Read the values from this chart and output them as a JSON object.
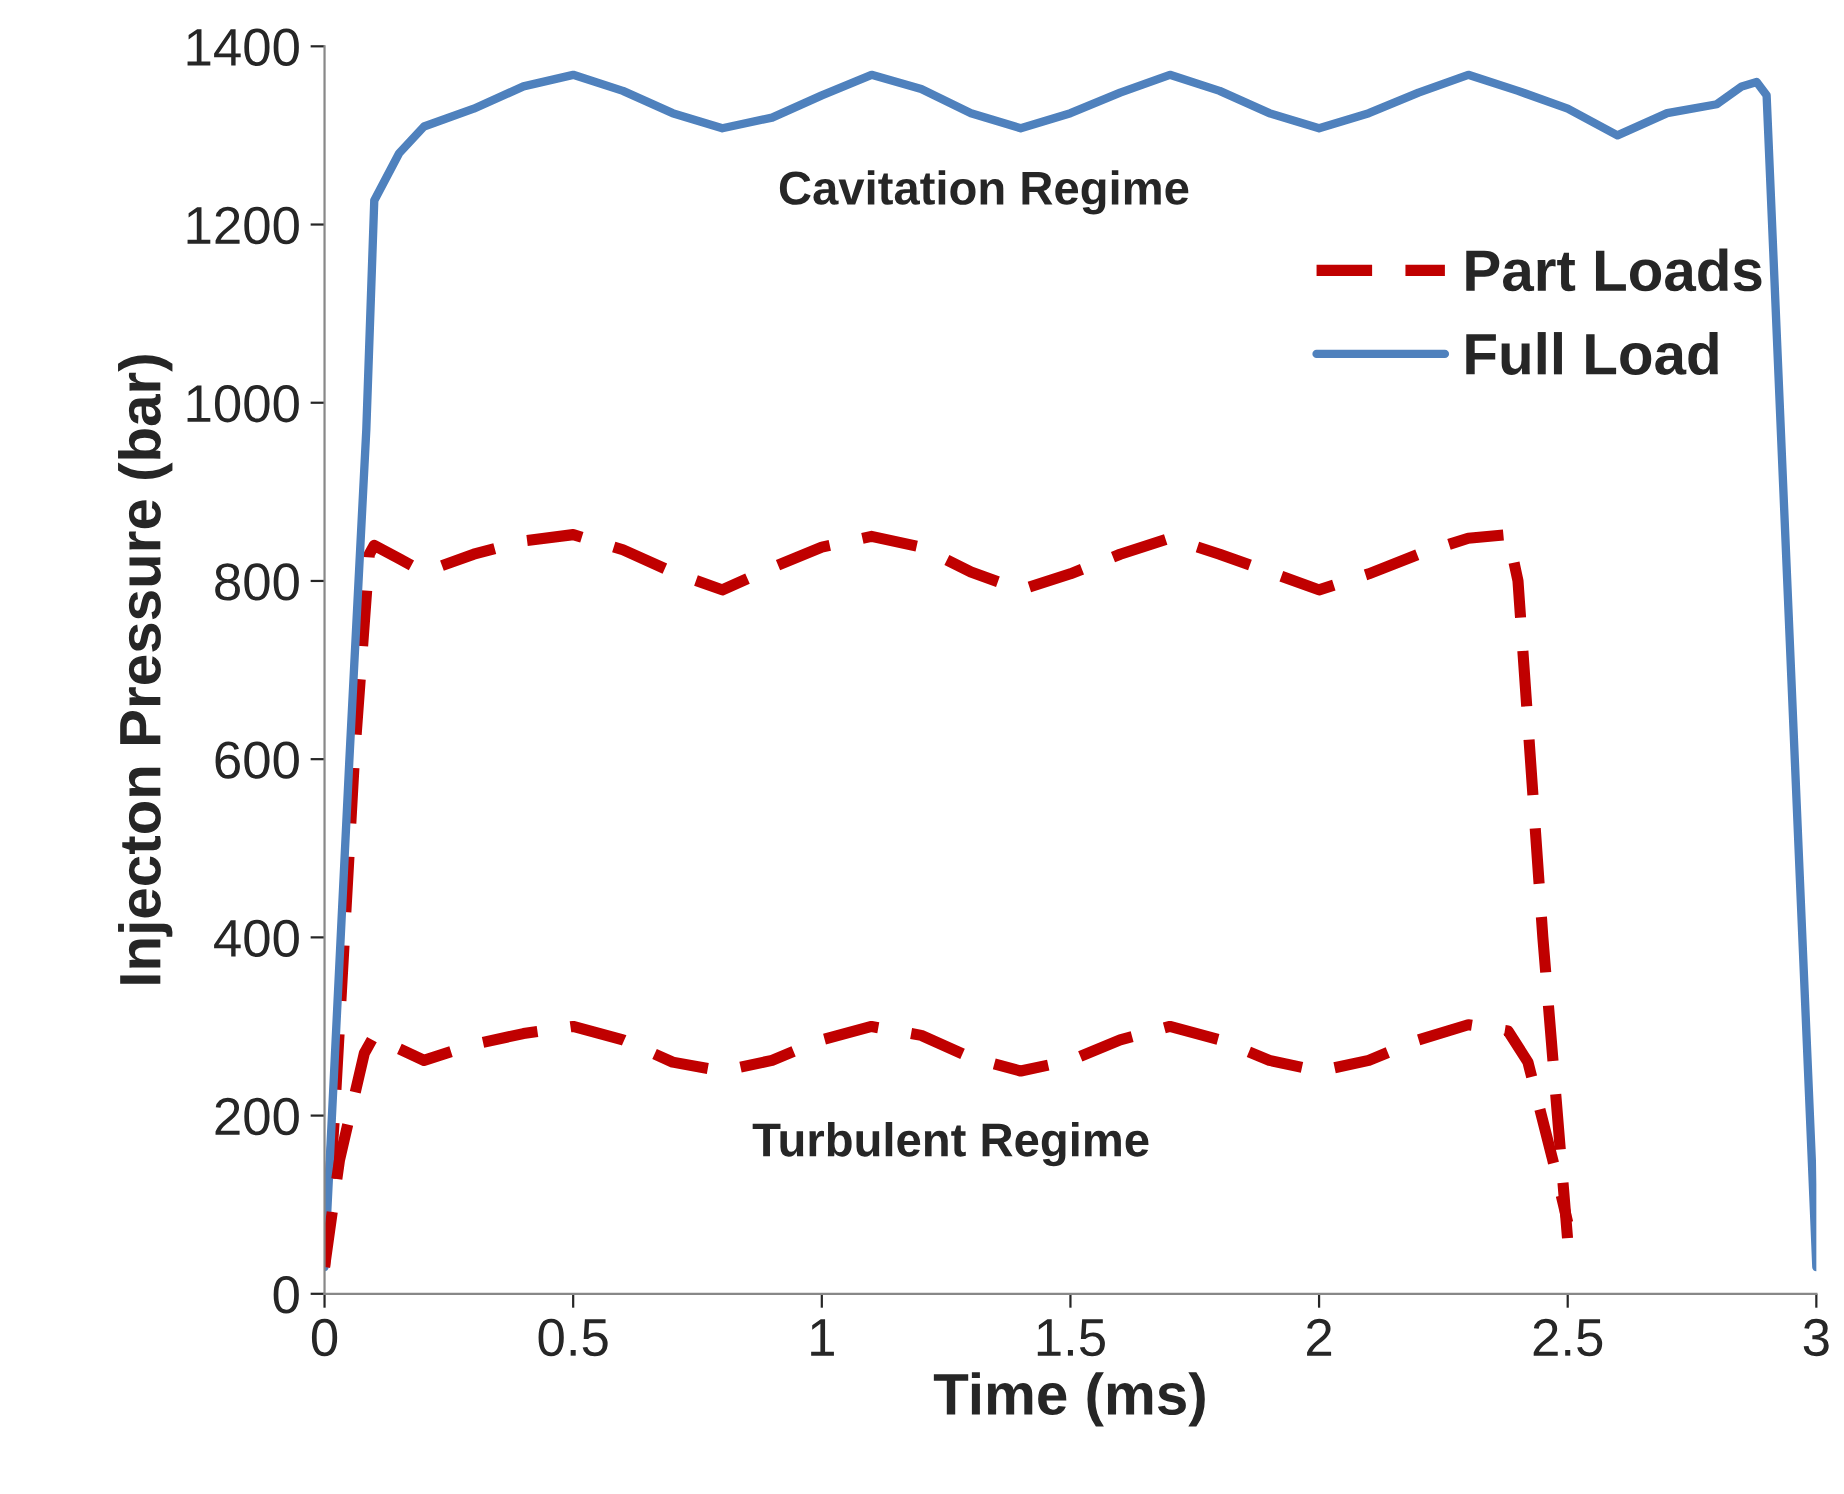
{
  "chart_data": {
    "type": "line",
    "xlabel": "Time (ms)",
    "ylabel": "Injecton Pressure (bar)",
    "xlim": [
      0,
      3
    ],
    "xticks": [
      0,
      0.5,
      1,
      1.5,
      2,
      2.5,
      3
    ],
    "ylim": [
      0,
      1400
    ],
    "yticks": [
      0,
      200,
      400,
      600,
      800,
      1000,
      1200,
      1400
    ],
    "grid": false,
    "legend": "top right",
    "annotations": [
      "Cavitation Regime",
      "Turbulent Regime"
    ],
    "series": [
      {
        "name": "Part Loads",
        "color": "#c00000",
        "line_style": "dashed",
        "x": [
          0,
          0.02,
          0.06,
          0.09,
          0.1,
          0.15,
          0.2,
          0.3,
          0.4,
          0.5,
          0.6,
          0.7,
          0.8,
          0.9,
          1.0,
          1.1,
          1.2,
          1.3,
          1.4,
          1.5,
          1.6,
          1.7,
          1.8,
          1.9,
          2.0,
          2.1,
          2.2,
          2.3,
          2.38,
          2.4,
          2.45,
          2.5
        ],
        "values": [
          30,
          200,
          600,
          830,
          840,
          825,
          810,
          830,
          845,
          852,
          835,
          810,
          790,
          815,
          838,
          850,
          838,
          810,
          790,
          808,
          830,
          848,
          830,
          810,
          790,
          808,
          830,
          848,
          852,
          800,
          400,
          60
        ]
      },
      {
        "name": "Full Load",
        "color": "#4f81bd",
        "line_style": "solid",
        "x": [
          0,
          0.05,
          0.084,
          0.1,
          0.15,
          0.2,
          0.3,
          0.4,
          0.5,
          0.6,
          0.7,
          0.8,
          0.9,
          1.0,
          1.1,
          1.2,
          1.3,
          1.4,
          1.5,
          1.6,
          1.7,
          1.8,
          1.9,
          2.0,
          2.1,
          2.2,
          2.3,
          2.4,
          2.5,
          2.6,
          2.7,
          2.8,
          2.85,
          2.88,
          2.9,
          3.0
        ],
        "values": [
          30,
          600,
          970,
          1227,
          1280,
          1310,
          1330,
          1355,
          1368,
          1350,
          1325,
          1308,
          1320,
          1345,
          1368,
          1352,
          1325,
          1308,
          1325,
          1348,
          1368,
          1350,
          1325,
          1308,
          1325,
          1348,
          1368,
          1350,
          1330,
          1300,
          1325,
          1335,
          1355,
          1360,
          1345,
          30
        ]
      },
      {
        "color": "#c00000",
        "line_style": "dashed",
        "x": [
          0,
          0.03,
          0.08,
          0.1,
          0.15,
          0.2,
          0.3,
          0.4,
          0.5,
          0.6,
          0.7,
          0.8,
          0.9,
          1.0,
          1.1,
          1.2,
          1.3,
          1.4,
          1.5,
          1.6,
          1.7,
          1.8,
          1.9,
          2.0,
          2.1,
          2.2,
          2.3,
          2.38,
          2.42,
          2.47,
          2.5
        ],
        "values": [
          30,
          150,
          270,
          290,
          275,
          262,
          280,
          292,
          300,
          285,
          260,
          250,
          262,
          285,
          300,
          290,
          265,
          250,
          262,
          285,
          300,
          285,
          262,
          250,
          262,
          285,
          302,
          295,
          260,
          150,
          80
        ]
      }
    ]
  }
}
